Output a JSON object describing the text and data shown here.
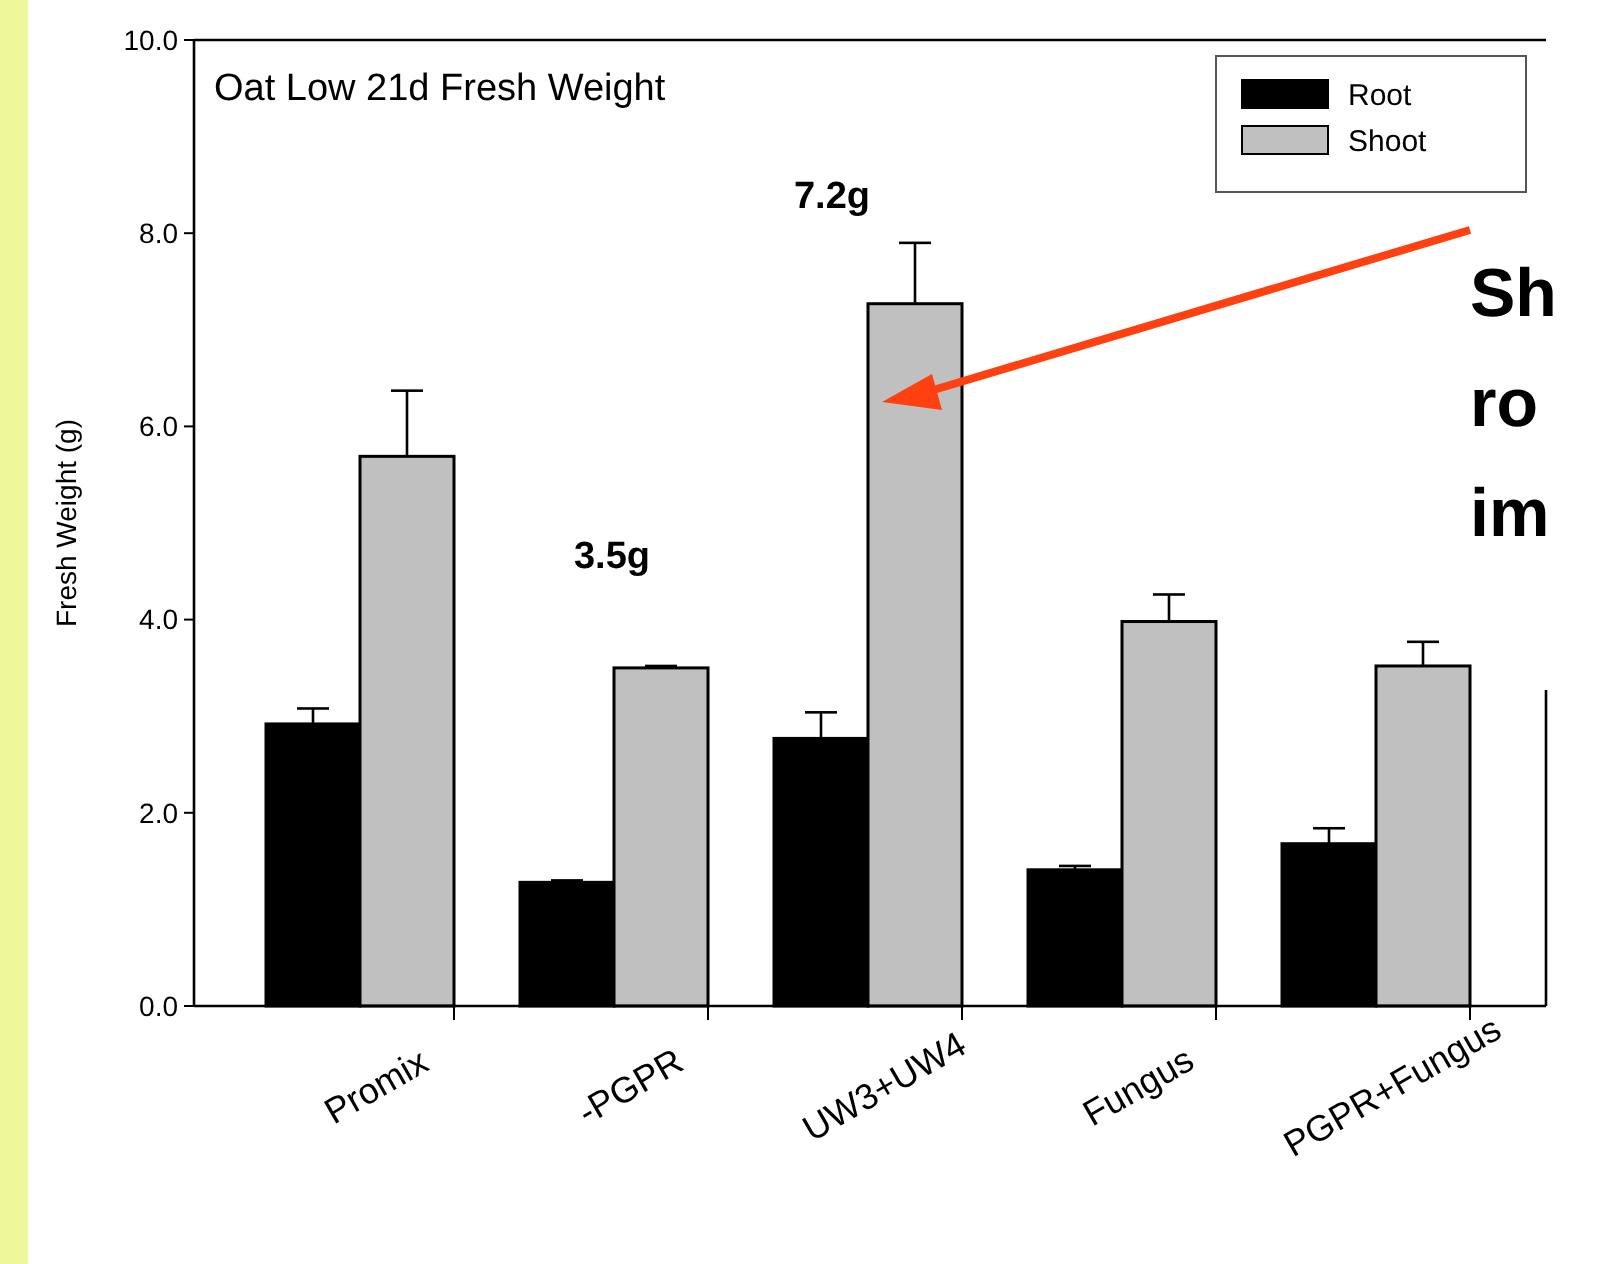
{
  "chart_data": {
    "type": "bar",
    "title": "Oat Low 21d Fresh Weight",
    "ylabel": "Fresh Weight (g)",
    "categories": [
      "Promix",
      "-PGPR",
      "UW3+UW4",
      "Fungus",
      "PGPR+Fungus"
    ],
    "series": [
      {
        "name": "Root",
        "color": "#000000",
        "values": [
          2.92,
          1.28,
          2.77,
          1.41,
          1.68
        ],
        "errors": [
          [
            2.92,
            3.08
          ],
          [
            1.28,
            1.3
          ],
          [
            2.77,
            3.04
          ],
          [
            1.41,
            1.45
          ],
          [
            1.68,
            1.84
          ]
        ]
      },
      {
        "name": "Shoot",
        "color": "#c0c0c0",
        "values": [
          5.69,
          3.5,
          7.27,
          3.98,
          3.52
        ],
        "errors": [
          [
            5.69,
            6.37
          ],
          [
            3.5,
            3.52
          ],
          [
            7.27,
            7.9
          ],
          [
            3.98,
            4.26
          ],
          [
            3.52,
            3.77
          ]
        ]
      }
    ],
    "ylim": [
      0,
      10
    ],
    "yticks": [
      {
        "value": 0,
        "label": "0.0"
      },
      {
        "value": 2,
        "label": "2.0"
      },
      {
        "value": 4,
        "label": "4.0"
      },
      {
        "value": 6,
        "label": "6.0"
      },
      {
        "value": 8,
        "label": "8.0"
      },
      {
        "value": 10,
        "label": "10.0"
      }
    ],
    "legend": "top right",
    "grid": false,
    "annotations": [
      "3.5g",
      "7.2g",
      "Sh",
      "ro",
      "im"
    ]
  }
}
